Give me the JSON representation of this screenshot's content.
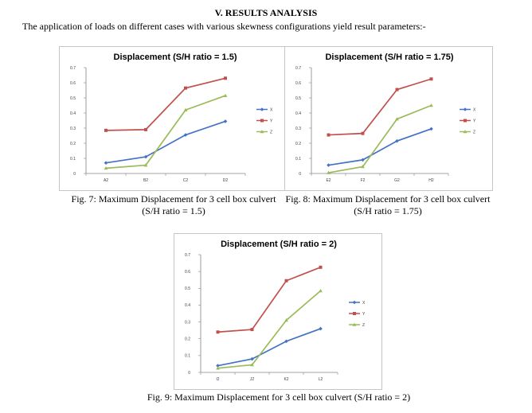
{
  "section": {
    "heading": "V.   RESULTS ANALYSIS",
    "intro": "The application of loads on different cases with various skewness configurations yield result parameters:-"
  },
  "series_colors": {
    "X": "#4472c4",
    "Y": "#c0504d",
    "Z": "#9bbb59"
  },
  "chart_data": [
    {
      "type": "line",
      "title": "Displacement (S/H ratio = 1.5)",
      "categories": [
        "A2",
        "B2",
        "C2",
        "D2"
      ],
      "ylim": [
        0,
        0.7
      ],
      "yticks": [
        "0",
        "0.1",
        "0.2",
        "0.3",
        "0.4",
        "0.5",
        "0.6",
        "0.7"
      ],
      "grid": false,
      "legend": "right",
      "series": [
        {
          "name": "X",
          "values": [
            0.07,
            0.11,
            0.255,
            0.345
          ]
        },
        {
          "name": "Y",
          "values": [
            0.285,
            0.29,
            0.565,
            0.63
          ]
        },
        {
          "name": "Z",
          "values": [
            0.035,
            0.055,
            0.42,
            0.515
          ]
        }
      ]
    },
    {
      "type": "line",
      "title": "Displacement (S/H ratio = 1.75)",
      "categories": [
        "E2",
        "F2",
        "G2",
        "H2"
      ],
      "ylim": [
        0,
        0.7
      ],
      "yticks": [
        "0",
        "0.1",
        "0.2",
        "0.3",
        "0.4",
        "0.5",
        "0.6",
        "0.7"
      ],
      "grid": false,
      "legend": "right",
      "series": [
        {
          "name": "X",
          "values": [
            0.055,
            0.09,
            0.215,
            0.295
          ]
        },
        {
          "name": "Y",
          "values": [
            0.255,
            0.265,
            0.555,
            0.625
          ]
        },
        {
          "name": "Z",
          "values": [
            0.005,
            0.045,
            0.36,
            0.45
          ]
        }
      ]
    },
    {
      "type": "line",
      "title": "Displacement (S/H ratio = 2)",
      "categories": [
        "I2",
        "J2",
        "K2",
        "L2"
      ],
      "ylim": [
        0,
        0.7
      ],
      "yticks": [
        "0",
        "0.1",
        "0.2",
        "0.3",
        "0.4",
        "0.5",
        "0.6",
        "0.7"
      ],
      "grid": false,
      "legend": "right",
      "series": [
        {
          "name": "X",
          "values": [
            0.04,
            0.08,
            0.185,
            0.26
          ]
        },
        {
          "name": "Y",
          "values": [
            0.24,
            0.255,
            0.545,
            0.625
          ]
        },
        {
          "name": "Z",
          "values": [
            0.025,
            0.045,
            0.31,
            0.485
          ]
        }
      ]
    }
  ],
  "captions": [
    {
      "line1": "Fig. 7: Maximum Displacement for 3 cell box culvert",
      "line2": "(S/H ratio = 1.5)"
    },
    {
      "line1": "Fig. 8: Maximum Displacement for 3 cell box culvert",
      "line2": "(S/H ratio = 1.75)"
    },
    {
      "line1": "Fig. 9: Maximum Displacement for 3 cell box culvert (S/H ratio = 2)"
    }
  ]
}
